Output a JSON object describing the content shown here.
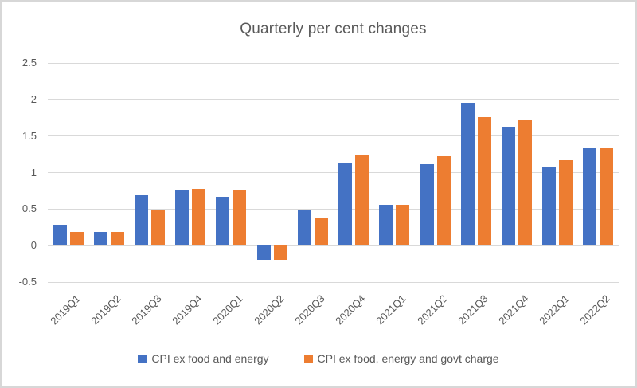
{
  "chart_data": {
    "type": "bar",
    "title": "Quarterly per cent changes",
    "categories": [
      "2019Q1",
      "2019Q2",
      "2019Q3",
      "2019Q4",
      "2020Q1",
      "2020Q2",
      "2020Q3",
      "2020Q4",
      "2021Q1",
      "2021Q2",
      "2021Q3",
      "2021Q4",
      "2022Q1",
      "2022Q2"
    ],
    "series": [
      {
        "name": "CPI ex food and energy",
        "color": "#4472C4",
        "values": [
          0.29,
          0.19,
          0.69,
          0.77,
          0.67,
          -0.19,
          0.48,
          1.14,
          0.56,
          1.12,
          1.95,
          1.63,
          1.08,
          1.33
        ]
      },
      {
        "name": "CPI ex food, energy and govt charge",
        "color": "#ED7D31",
        "values": [
          0.19,
          0.19,
          0.49,
          0.78,
          0.77,
          -0.19,
          0.38,
          1.24,
          0.56,
          1.22,
          1.76,
          1.73,
          1.17,
          1.33
        ]
      }
    ],
    "ylim": [
      -0.5,
      2.5
    ],
    "yticks": [
      2.5,
      2,
      1.5,
      1,
      0.5,
      0,
      -0.5
    ],
    "ytick_labels": [
      "2.5",
      "2",
      "1.5",
      "1",
      "0.5",
      "0",
      "-0.5"
    ],
    "grid": "horizontal",
    "legend_position": "bottom",
    "colors": {
      "title_text": "#595959",
      "axis_text": "#595959",
      "gridline": "#D9D9D9",
      "frame_border": "#D7D7D7",
      "background": "#FFFFFF"
    }
  }
}
